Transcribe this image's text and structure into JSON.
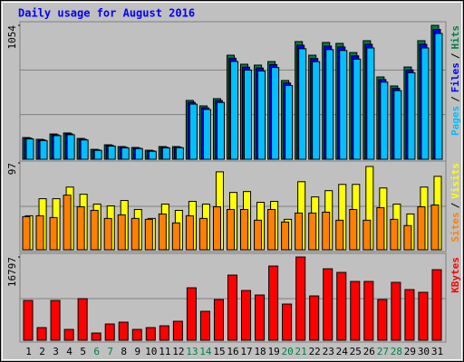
{
  "chart_data": [
    {
      "type": "bar",
      "title": "Daily usage for August 2016",
      "ylim": [
        0,
        1054
      ],
      "yticks": [
        1054
      ],
      "legend_separator": "/",
      "series": [
        {
          "name": "Hits",
          "color": "#008040",
          "values": [
            171,
            157,
            199,
            207,
            164,
            78,
            114,
            100,
            93,
            71,
            100,
            100,
            463,
            420,
            477,
            819,
            748,
            741,
            769,
            620,
            926,
            819,
            919,
            912,
            840,
            933,
            648,
            577,
            726,
            933,
            1054
          ]
        },
        {
          "name": "Files",
          "color": "#0000ff",
          "values": [
            166,
            152,
            192,
            200,
            158,
            74,
            109,
            95,
            88,
            67,
            95,
            95,
            448,
            405,
            462,
            795,
            725,
            718,
            745,
            600,
            898,
            793,
            891,
            884,
            814,
            905,
            627,
            558,
            703,
            905,
            1022
          ]
        },
        {
          "name": "Pages",
          "color": "#00c0ff",
          "values": [
            160,
            147,
            186,
            193,
            152,
            70,
            104,
            90,
            84,
            63,
            90,
            91,
            434,
            392,
            447,
            770,
            702,
            695,
            722,
            580,
            870,
            768,
            863,
            856,
            788,
            876,
            607,
            540,
            681,
            876,
            990
          ]
        }
      ]
    },
    {
      "type": "bar",
      "ylim": [
        0,
        97
      ],
      "yticks": [
        97
      ],
      "legend_separator": "/",
      "series": [
        {
          "name": "Visits",
          "color": "#ffff00",
          "values": [
            38,
            57,
            57,
            70,
            62,
            51,
            49,
            55,
            45,
            35,
            51,
            44,
            54,
            51,
            87,
            64,
            65,
            53,
            54,
            34,
            76,
            59,
            66,
            73,
            73,
            93,
            69,
            51,
            40,
            70,
            82
          ]
        },
        {
          "name": "Sites",
          "color": "#ff8000",
          "values": [
            37,
            38,
            36,
            61,
            48,
            44,
            35,
            39,
            35,
            34,
            40,
            30,
            38,
            35,
            48,
            45,
            45,
            33,
            45,
            31,
            41,
            41,
            42,
            33,
            45,
            33,
            47,
            34,
            27,
            48,
            50
          ]
        }
      ]
    },
    {
      "type": "bar",
      "ylim": [
        0,
        16797
      ],
      "yticks": [
        16797
      ],
      "categories": [
        "1",
        "2",
        "3",
        "4",
        "5",
        "6",
        "7",
        "8",
        "9",
        "10",
        "11",
        "12",
        "13",
        "14",
        "15",
        "16",
        "17",
        "18",
        "19",
        "20",
        "21",
        "22",
        "23",
        "24",
        "25",
        "26",
        "27",
        "28",
        "29",
        "30",
        "31"
      ],
      "category_colors": [
        "#000000",
        "#000000",
        "#000000",
        "#000000",
        "#000000",
        "#008040",
        "#008040",
        "#000000",
        "#000000",
        "#000000",
        "#000000",
        "#000000",
        "#008040",
        "#008040",
        "#000000",
        "#000000",
        "#000000",
        "#000000",
        "#000000",
        "#008040",
        "#008040",
        "#000000",
        "#000000",
        "#000000",
        "#000000",
        "#000000",
        "#008040",
        "#008040",
        "#000000",
        "#000000",
        "#000000"
      ],
      "series": [
        {
          "name": "KBytes",
          "color": "#ff0000",
          "values": [
            8033,
            2556,
            8033,
            2191,
            8398,
            1461,
            3286,
            3652,
            2191,
            2556,
            2921,
            3834,
            10589,
            5842,
            8216,
            13145,
            10042,
            9129,
            14971,
            7303,
            16797,
            8946,
            14423,
            13693,
            11867,
            11867,
            8216,
            11685,
            10224,
            9676,
            14241
          ]
        }
      ]
    }
  ]
}
